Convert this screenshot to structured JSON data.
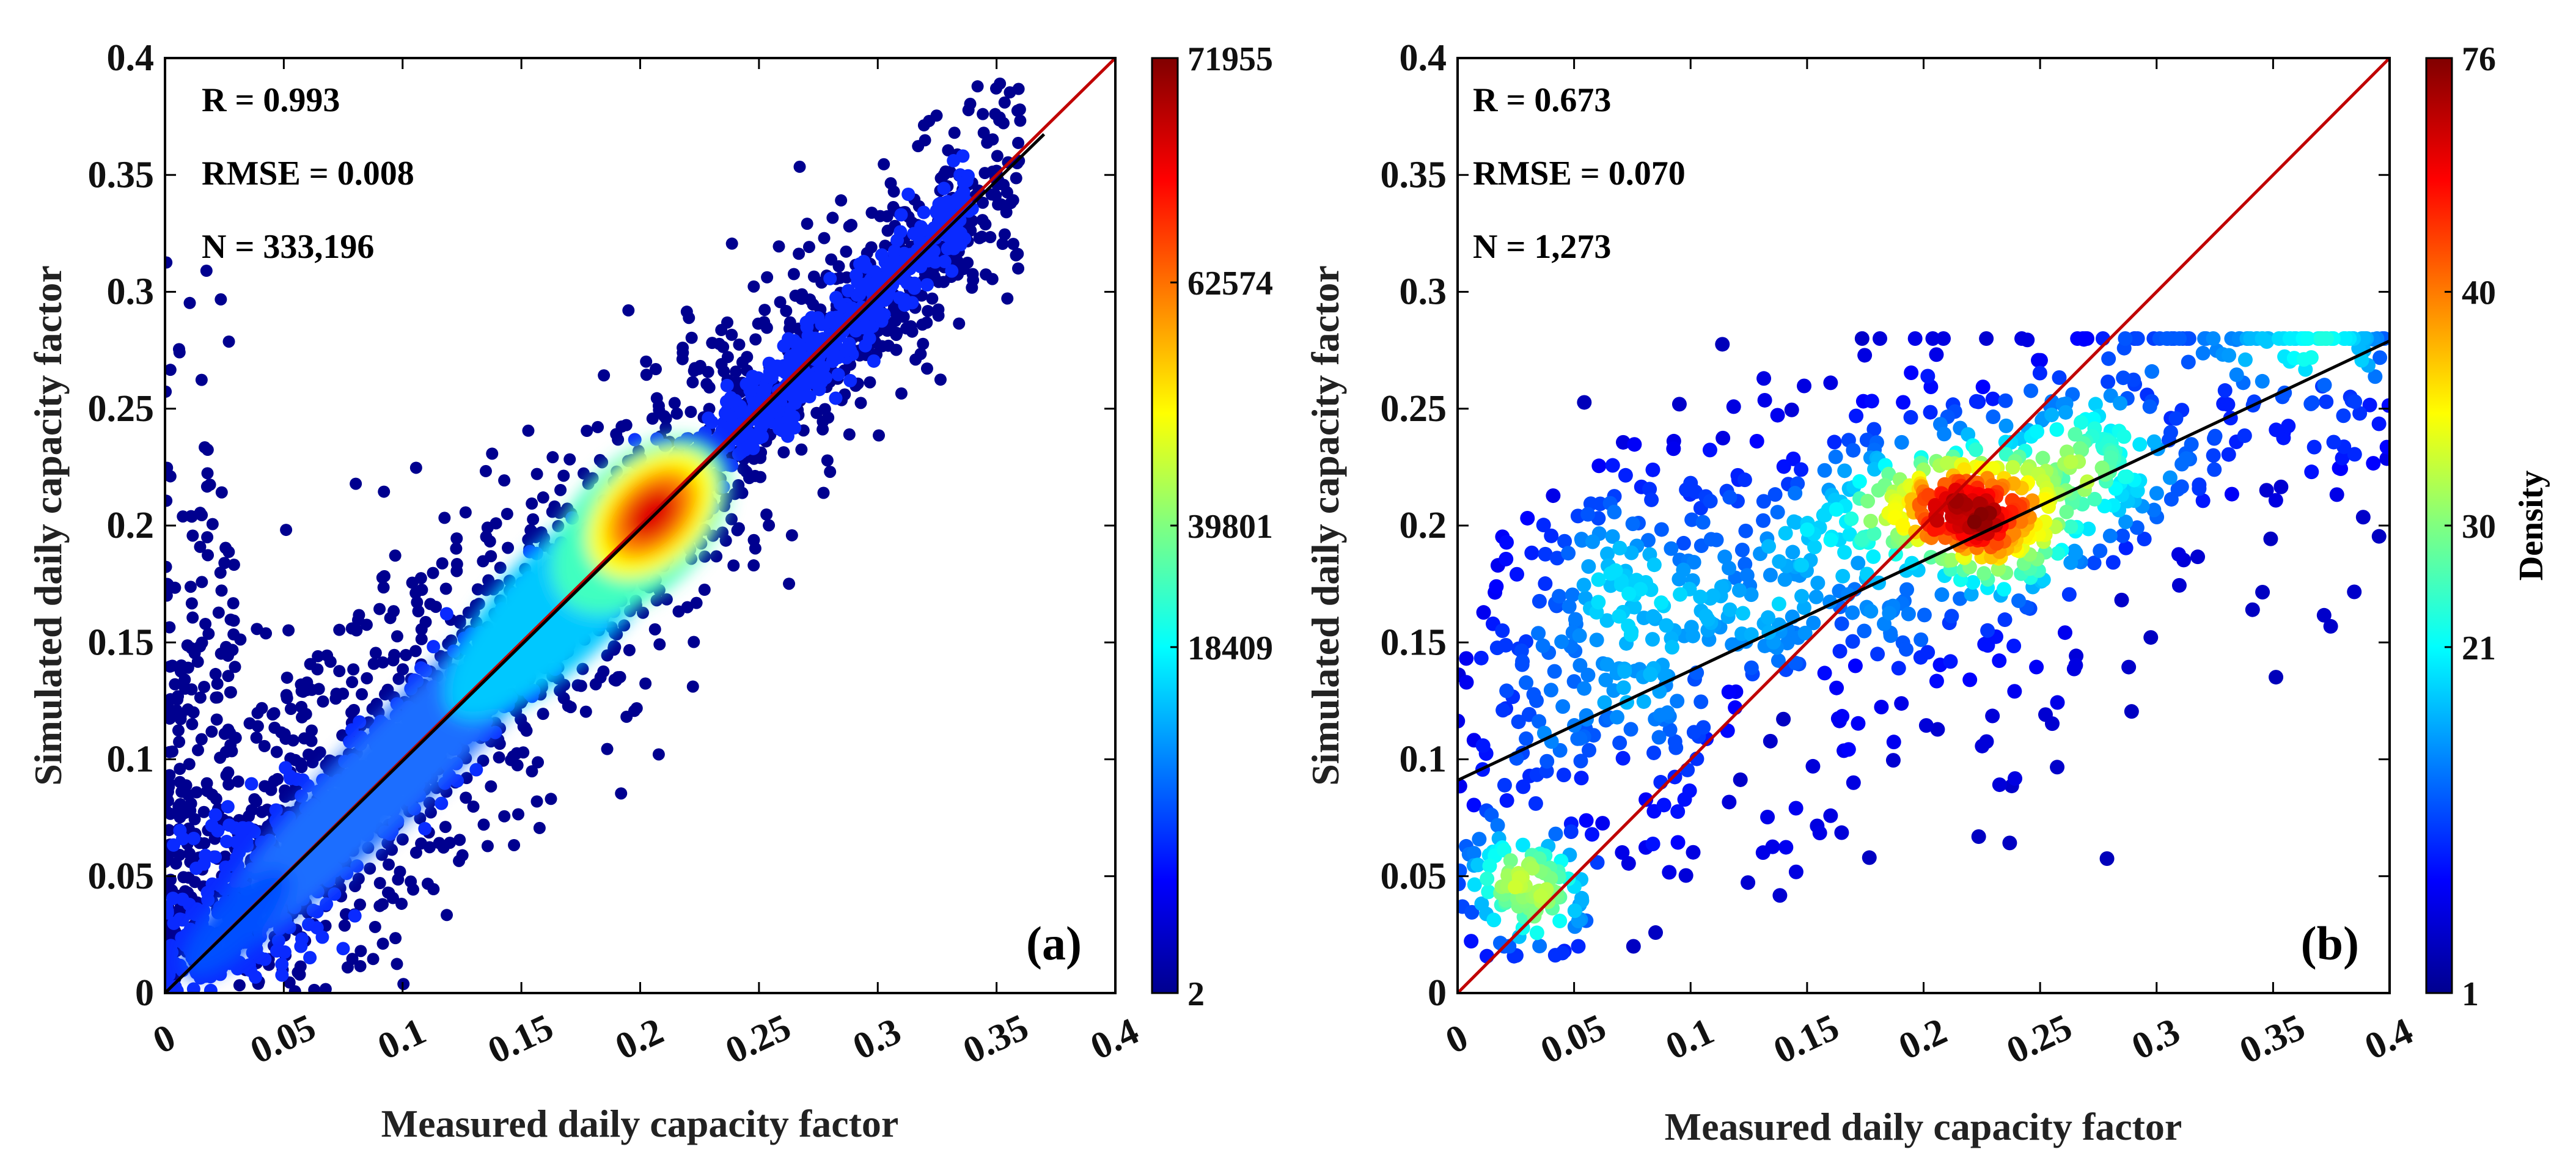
{
  "chart_data": [
    {
      "type": "scatter",
      "panel": "(a)",
      "xlabel": "Measured daily capacity factor",
      "ylabel": "Simulated daily capacity factor",
      "xlim": [
        0,
        0.4
      ],
      "ylim": [
        0,
        0.4
      ],
      "xticks": [
        "0",
        "0.05",
        "0.1",
        "0.15",
        "0.2",
        "0.25",
        "0.3",
        "0.35",
        "0.4"
      ],
      "yticks": [
        "0",
        "0.05",
        "0.1",
        "0.15",
        "0.2",
        "0.25",
        "0.3",
        "0.35",
        "0.4"
      ],
      "stats": [
        "R = 0.993",
        "RMSE = 0.008",
        "N =  333,196"
      ],
      "fit_line": {
        "intercept": 0.0,
        "slope": 0.993,
        "color": "#000000"
      },
      "identity_line": {
        "color": "#c00000"
      },
      "density_peak": [
        0.205,
        0.205
      ],
      "colorbar": {
        "label": "",
        "ticks": [
          "2",
          "18409",
          "39801",
          "62574",
          "71955"
        ],
        "min": 2,
        "max": 71955
      }
    },
    {
      "type": "scatter",
      "panel": "(b)",
      "xlabel": "Measured daily capacity factor",
      "ylabel": "Simulated daily capacity factor",
      "xlim": [
        0,
        0.4
      ],
      "ylim": [
        0,
        0.4
      ],
      "xticks": [
        "0",
        "0.05",
        "0.1",
        "0.15",
        "0.2",
        "0.25",
        "0.3",
        "0.35",
        "0.4"
      ],
      "yticks": [
        "0",
        "0.05",
        "0.1",
        "0.15",
        "0.2",
        "0.25",
        "0.3",
        "0.35",
        "0.4"
      ],
      "stats": [
        "R = 0.673",
        "RMSE = 0.070",
        "N = 1,273"
      ],
      "fit_line": {
        "intercept": 0.091,
        "slope": 0.47,
        "color": "#000000"
      },
      "identity_line": {
        "color": "#c00000"
      },
      "clusters": [
        {
          "x": 0.22,
          "y": 0.205,
          "label": "high density"
        },
        {
          "x": 0.03,
          "y": 0.05,
          "label": "high density"
        },
        {
          "x": 0.27,
          "y": 0.225,
          "label": "medium density"
        },
        {
          "x": 0.07,
          "y": 0.17,
          "label": "medium density"
        }
      ],
      "colorbar": {
        "label": "Density",
        "ticks": [
          "1",
          "21",
          "30",
          "40",
          "76"
        ],
        "min": 1,
        "max": 76
      }
    }
  ],
  "colors": {
    "jet_low": "#00008f",
    "jet_high": "#800000",
    "identity": "#c00000",
    "fit": "#000000"
  }
}
